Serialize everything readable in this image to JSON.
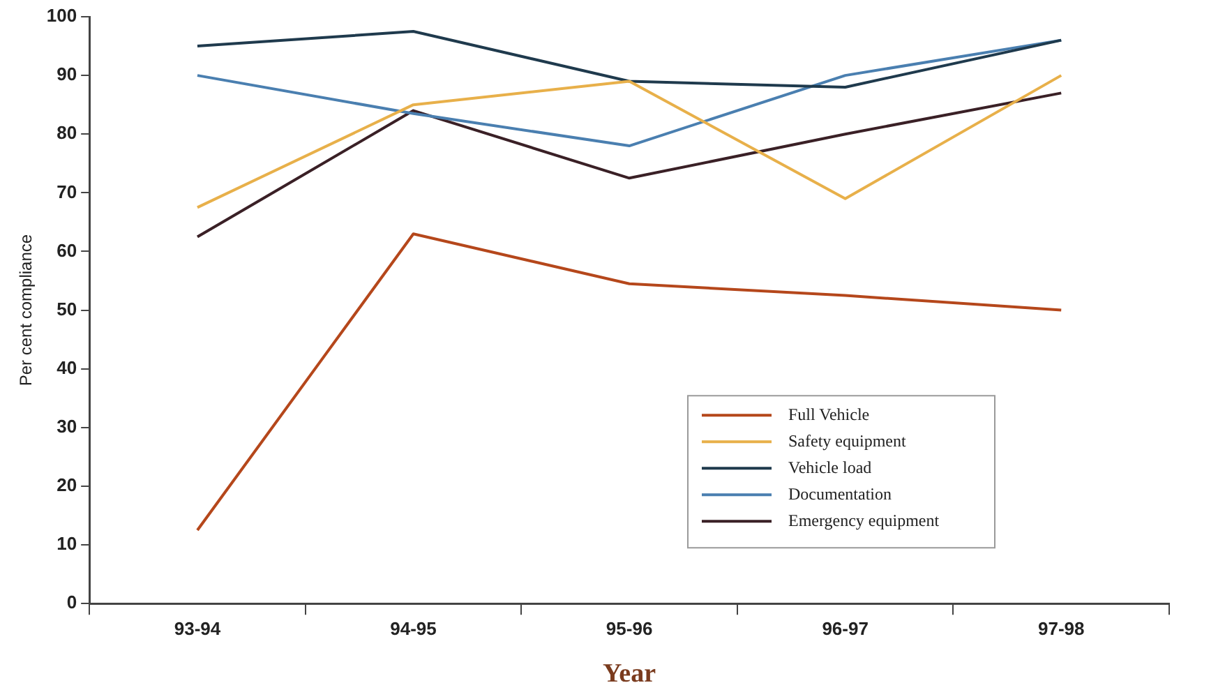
{
  "chart_data": {
    "type": "line",
    "xlabel": "Year",
    "ylabel": "Per cent compliance",
    "categories": [
      "93-94",
      "94-95",
      "95-96",
      "96-97",
      "97-98"
    ],
    "series": [
      {
        "name": "Full Vehicle",
        "color": "#b5471b",
        "values": [
          12.5,
          63,
          54.5,
          52.5,
          50
        ]
      },
      {
        "name": "Safety equipment",
        "color": "#e8b04a",
        "values": [
          67.5,
          85,
          89,
          69,
          90
        ]
      },
      {
        "name": "Vehicle load",
        "color": "#1f3a4d",
        "values": [
          95,
          97.5,
          89,
          88,
          96
        ]
      },
      {
        "name": "Documentation",
        "color": "#4a7fb0",
        "values": [
          90,
          83.5,
          78,
          90,
          96
        ]
      },
      {
        "name": "Emergency equipment",
        "color": "#3a2026",
        "values": [
          62.5,
          84,
          72.5,
          80,
          87
        ]
      }
    ],
    "ylim": [
      0,
      100
    ],
    "yticks": [
      0,
      10,
      20,
      30,
      40,
      50,
      60,
      70,
      80,
      90,
      100
    ],
    "grid": false,
    "legend": "bottom right",
    "marker": "none",
    "line_style": "solid"
  }
}
